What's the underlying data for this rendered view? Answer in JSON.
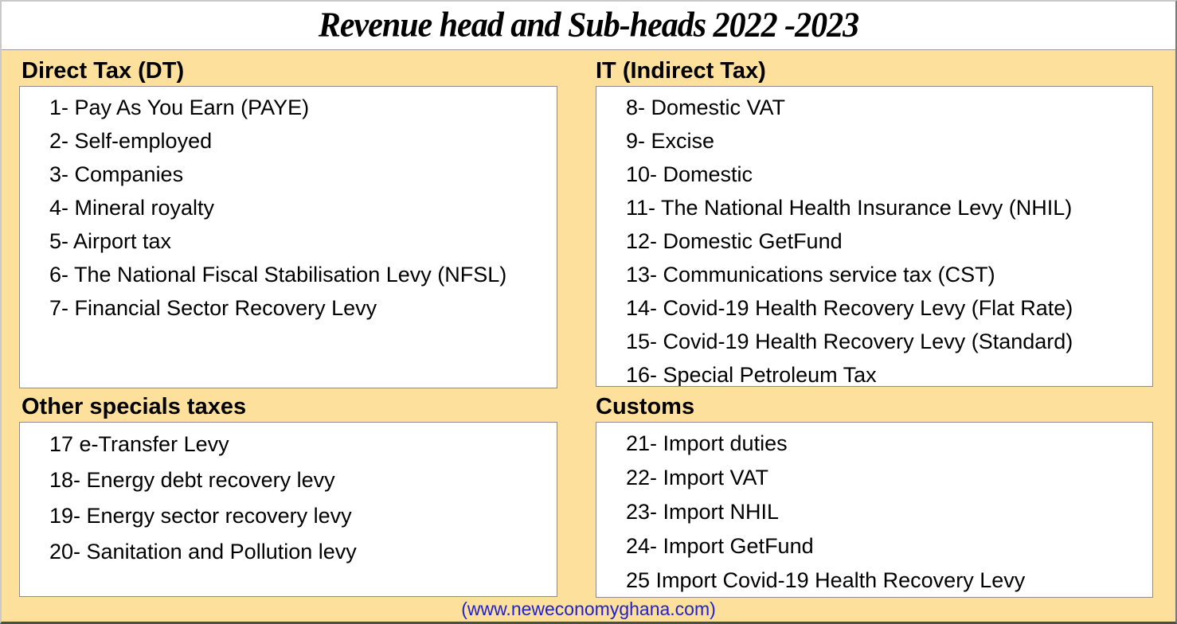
{
  "title": "Revenue head and Sub-heads 2022 -2023",
  "footer": "(www.neweconomyghana.com)",
  "colors": {
    "page_background": "#FCE09C",
    "box_background": "#FFFFFF",
    "box_border": "#8C8C8C",
    "text": "#000000",
    "footer_text": "#2222CC"
  },
  "sections": [
    {
      "id": "direct-tax",
      "title": "Direct Tax (DT)",
      "items": [
        "1- Pay As You Earn (PAYE)",
        "2- Self-employed",
        "3- Companies",
        "4- Mineral royalty",
        "5- Airport tax",
        "6- The National Fiscal Stabilisation Levy (NFSL)",
        "7- Financial Sector Recovery Levy"
      ]
    },
    {
      "id": "indirect-tax",
      "title": "IT (Indirect Tax)",
      "items": [
        "8- Domestic VAT",
        "9- Excise",
        "10- Domestic",
        "11- The National Health Insurance Levy (NHIL)",
        "12- Domestic GetFund",
        "13- Communications service tax (CST)",
        "14- Covid-19 Health Recovery Levy (Flat Rate)",
        "15- Covid-19 Health Recovery Levy (Standard)",
        "16- Special Petroleum Tax"
      ]
    },
    {
      "id": "other-specials-taxes",
      "title": "Other specials taxes",
      "items": [
        "17 e-Transfer Levy",
        "18- Energy debt recovery levy",
        "19- Energy sector recovery levy",
        "20- Sanitation and Pollution levy"
      ]
    },
    {
      "id": "customs",
      "title": "Customs",
      "items": [
        "21- Import duties",
        "22- Import VAT",
        "23- Import NHIL",
        "24- Import GetFund",
        "25 Import Covid-19 Health Recovery Levy"
      ]
    }
  ]
}
